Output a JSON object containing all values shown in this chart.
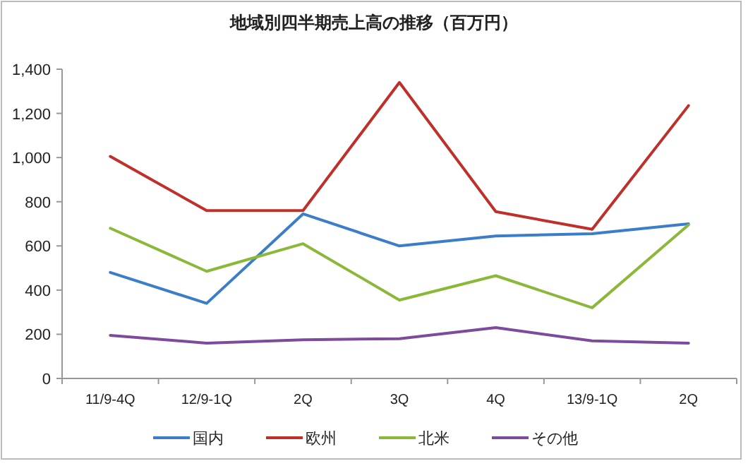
{
  "chart_data": {
    "type": "line",
    "title": "地域別四半期売上高の推移（百万円）",
    "categories": [
      "11/9-4Q",
      "12/9-1Q",
      "2Q",
      "3Q",
      "4Q",
      "13/9-1Q",
      "2Q"
    ],
    "series": [
      {
        "name": "国内",
        "color": "#3a7dc9",
        "values": [
          480,
          340,
          745,
          600,
          645,
          655,
          700
        ]
      },
      {
        "name": "欧州",
        "color": "#c0302b",
        "values": [
          1005,
          760,
          760,
          1340,
          755,
          675,
          1235
        ]
      },
      {
        "name": "北米",
        "color": "#8cb83a",
        "values": [
          680,
          485,
          610,
          355,
          465,
          320,
          695
        ]
      },
      {
        "name": "その他",
        "color": "#7e4a9e",
        "values": [
          195,
          160,
          175,
          180,
          230,
          170,
          160
        ]
      }
    ],
    "ylim": [
      0,
      1400
    ],
    "yticks": [
      {
        "value": 0,
        "label": "0"
      },
      {
        "value": 200,
        "label": "200"
      },
      {
        "value": 400,
        "label": "400"
      },
      {
        "value": 600,
        "label": "600"
      },
      {
        "value": 800,
        "label": "800"
      },
      {
        "value": 1000,
        "label": "1,000"
      },
      {
        "value": 1200,
        "label": "1,200"
      },
      {
        "value": 1400,
        "label": "1,400"
      }
    ],
    "grid": false,
    "legend": "bottom",
    "marker": "none",
    "line_style": "solid"
  }
}
